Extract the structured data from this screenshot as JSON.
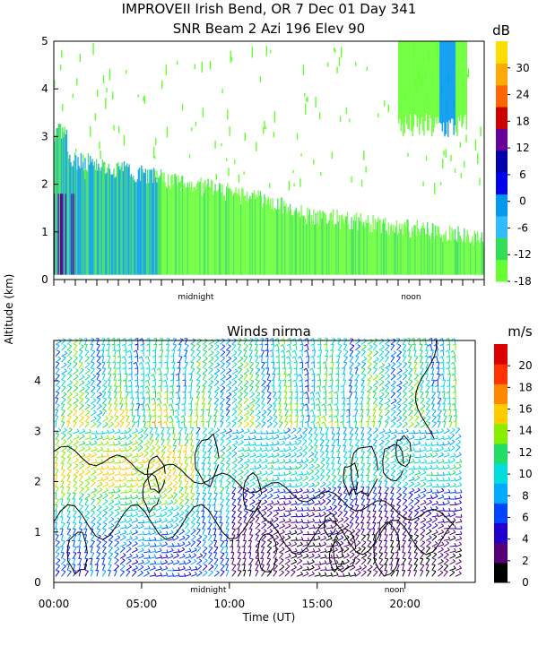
{
  "header": {
    "line1": "IMPROVEII  Irish Bend, OR    7 Dec 01 Day 341",
    "line2": "SNR Beam 2 Azi 196 Elev 90"
  },
  "chart_data": [
    {
      "type": "heatmap",
      "title": "SNR Beam 2 Azi 196 Elev 90",
      "ylabel": "Altitude (km)",
      "ylim": [
        0,
        5
      ],
      "y_ticks": [
        "0",
        "1",
        "2",
        "3",
        "4",
        "5"
      ],
      "x_markers": [
        "midnight",
        "noon"
      ],
      "colorbar": {
        "unit": "dB",
        "ticks": [
          "30",
          "24",
          "18",
          "12",
          "6",
          "0",
          "-6",
          "-12",
          "-18"
        ],
        "range": [
          -18,
          36
        ],
        "colors": [
          "#66ff33",
          "#33dd55",
          "#33bbff",
          "#0099ee",
          "#0000ee",
          "#0000aa",
          "#660099",
          "#cc0000",
          "#ff6600",
          "#ffaa00",
          "#ffdd00"
        ]
      },
      "description": "Radar SNR time-height cross-section; strong returns below ~2.5 km early in the period, sparse echoes aloft, enhanced returns near 4 km late in the day."
    },
    {
      "type": "scatter",
      "title": "Winds nirma",
      "xlabel": "Time (UT)",
      "ylabel": "Altitude (km)",
      "ylim": [
        0,
        4.8
      ],
      "xlim": [
        0,
        24
      ],
      "y_ticks": [
        "0",
        "1",
        "2",
        "3",
        "4"
      ],
      "x_ticks": [
        "00:00",
        "05:00",
        "10:00",
        "15:00",
        "20:00"
      ],
      "x_tick_values": [
        0,
        5,
        10,
        15,
        20
      ],
      "x_markers": [
        "midnight",
        "noon"
      ],
      "colorbar": {
        "unit": "m/s",
        "ticks": [
          "20",
          "18",
          "16",
          "14",
          "12",
          "10",
          "8",
          "6",
          "4",
          "2",
          "0"
        ],
        "range": [
          0,
          22
        ],
        "colors": [
          "#000000",
          "#550077",
          "#2200cc",
          "#0044ff",
          "#00aaff",
          "#00dddd",
          "#22dd66",
          "#88ee00",
          "#ffcc00",
          "#ff8800",
          "#ff3300",
          "#dd0000"
        ]
      },
      "description": "Wind barbs colored by speed (m/s) with black speed contours."
    }
  ]
}
